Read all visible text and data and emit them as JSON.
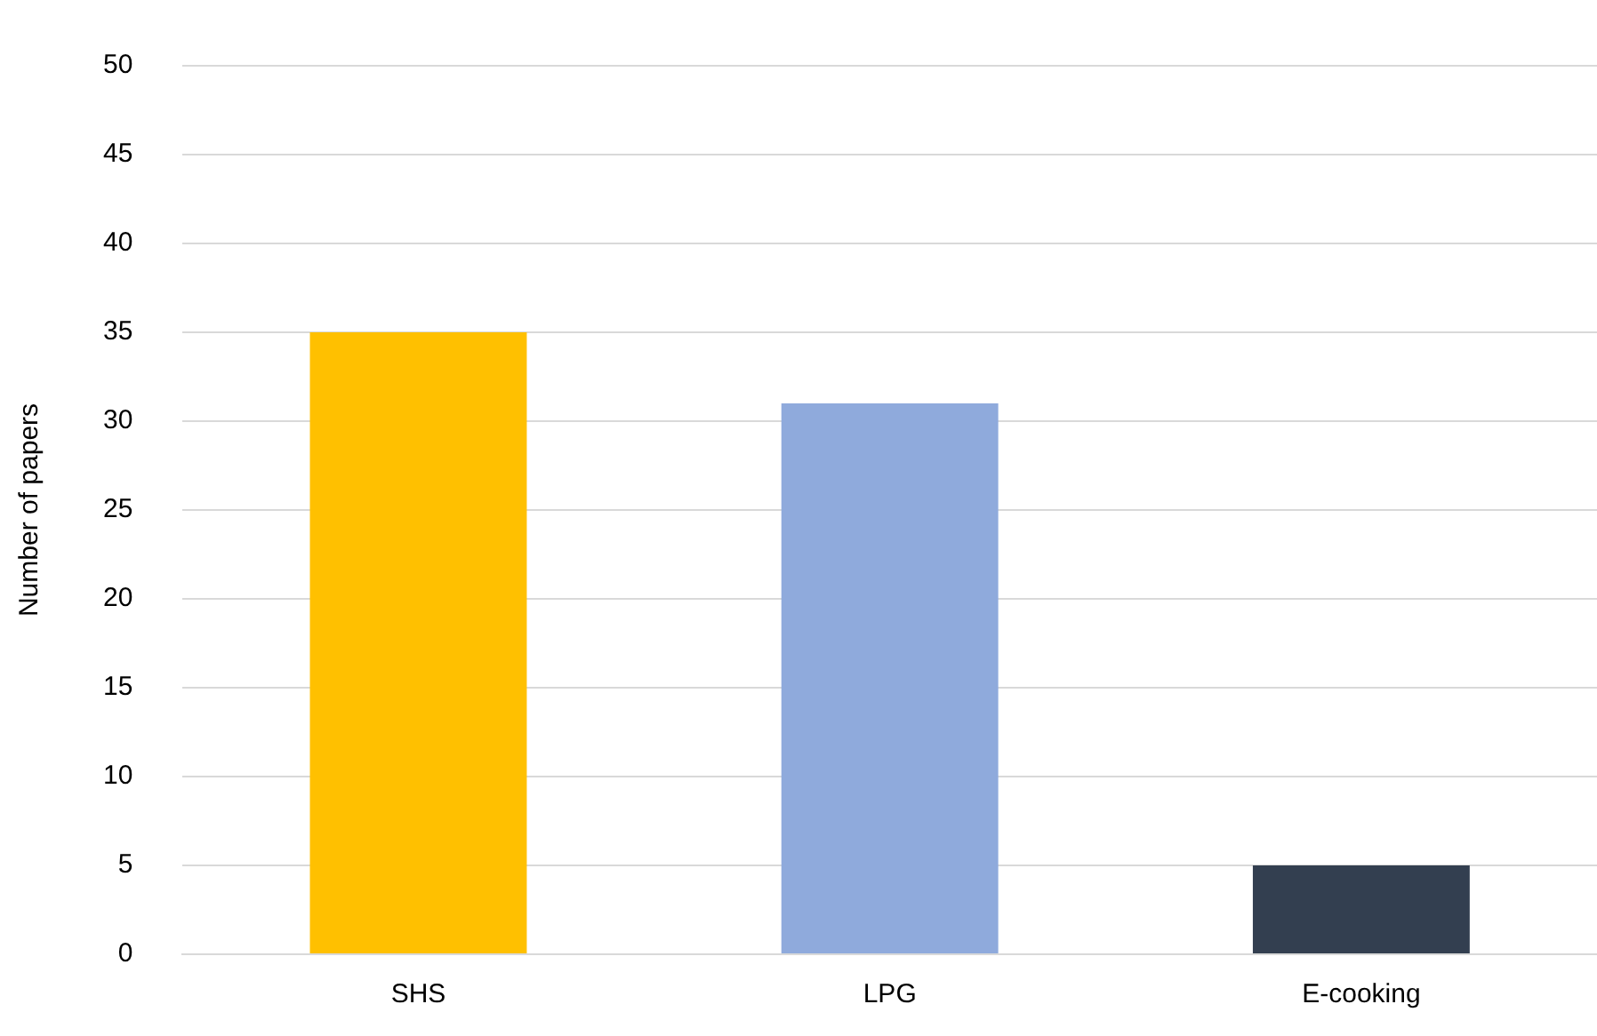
{
  "chart_data": {
    "type": "bar",
    "ylabel": "Number of papers",
    "categories": [
      "SHS",
      "LPG",
      "E-cooking"
    ],
    "values": [
      35,
      31,
      5
    ],
    "colors": [
      "#ffc000",
      "#8faadc",
      "#333f50"
    ],
    "ylim": [
      0,
      50
    ],
    "yticks": [
      0,
      5,
      10,
      15,
      20,
      25,
      30,
      35,
      40,
      45,
      50
    ],
    "grid": "y"
  }
}
